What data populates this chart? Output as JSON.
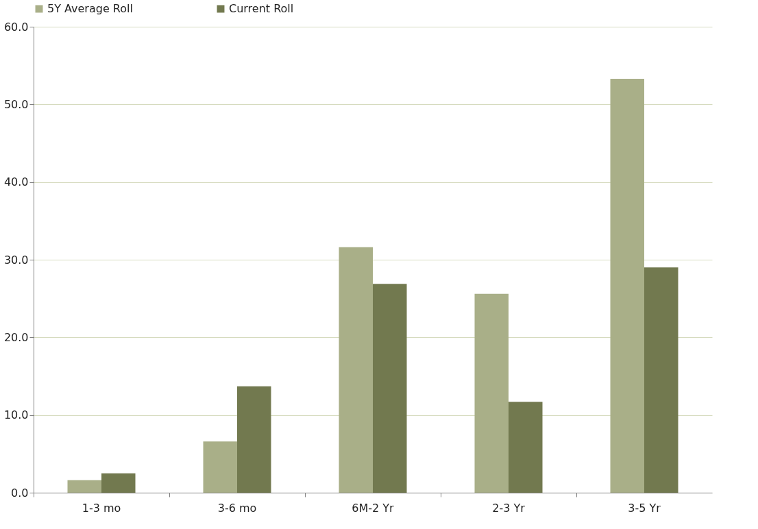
{
  "chart_data": {
    "type": "bar",
    "categories": [
      "1-3 mo",
      "3-6 mo",
      "6M-2 Yr",
      "2-3 Yr",
      "3-5 Yr"
    ],
    "series": [
      {
        "name": "5Y Average Roll",
        "color": "#a9af88",
        "values": [
          1.6,
          6.6,
          31.6,
          25.6,
          53.3
        ]
      },
      {
        "name": "Current Roll",
        "color": "#72794f",
        "values": [
          2.5,
          13.7,
          26.9,
          11.7,
          29.0
        ]
      }
    ],
    "ylim": [
      0,
      60
    ],
    "yticks": [
      {
        "value": 0,
        "label": "0.0"
      },
      {
        "value": 10,
        "label": "10.0"
      },
      {
        "value": 20,
        "label": "20.0"
      },
      {
        "value": 30,
        "label": "30.0"
      },
      {
        "value": 40,
        "label": "40.0"
      },
      {
        "value": 50,
        "label": "50.0"
      },
      {
        "value": 60,
        "label": "60.0"
      }
    ],
    "grid": "y",
    "legend": "top"
  }
}
